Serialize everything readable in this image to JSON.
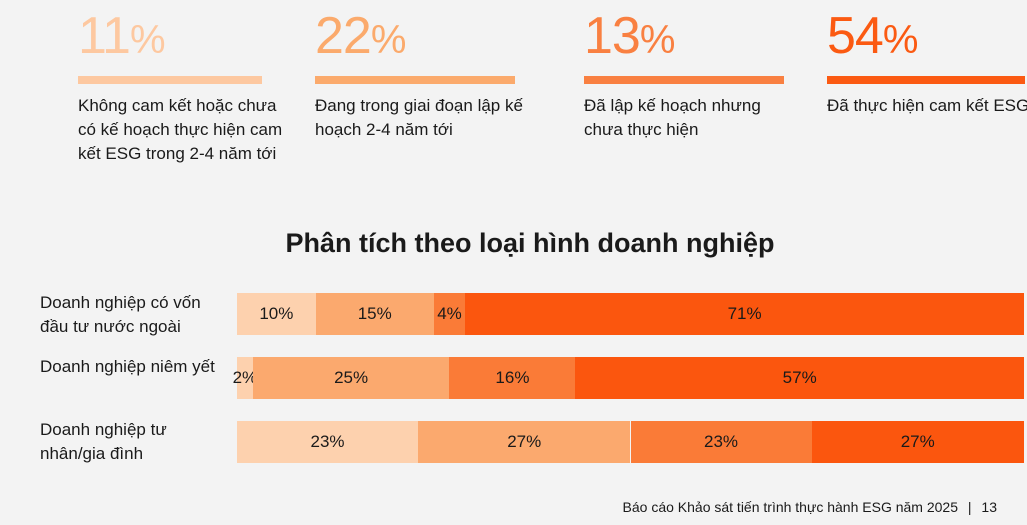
{
  "stats": [
    {
      "value": "11",
      "symbol": "%",
      "color": "#fdc8a0",
      "text": "Không cam kết hoặc chưa có kế hoạch thực hiện cam kết ESG trong 2-4 năm tới"
    },
    {
      "value": "22",
      "symbol": "%",
      "color": "#fbaa6c",
      "text": "Đang trong giai đoạn lập kế hoạch 2-4 năm tới"
    },
    {
      "value": "13",
      "symbol": "%",
      "color": "#f98041",
      "text": "Đã lập kế hoạch nhưng chưa thực hiện"
    },
    {
      "value": "54",
      "symbol": "%",
      "color": "#fb5a12",
      "text": "Đã thực hiện cam kết ESG"
    }
  ],
  "chart_data": {
    "type": "bar",
    "orientation": "horizontal",
    "stacked": true,
    "title": "Phân tích theo loại hình doanh nghiệp",
    "categories": [
      "Doanh nghiệp có vốn đầu tư nước ngoài",
      "Doanh nghiệp niêm yết",
      "Doanh nghiệp tư nhân/gia đình"
    ],
    "series": [
      {
        "values": [
          10,
          2,
          23
        ],
        "labels": [
          "10%",
          "2%",
          "23%"
        ],
        "color": "#fdd1ae"
      },
      {
        "values": [
          15,
          25,
          27
        ],
        "labels": [
          "15%",
          "25%",
          "27%"
        ],
        "color": "#fba96e"
      },
      {
        "values": [
          4,
          16,
          23
        ],
        "labels": [
          "4%",
          "16%",
          "23%"
        ],
        "color": "#fa7b37"
      },
      {
        "values": [
          71,
          57,
          27
        ],
        "labels": [
          "71%",
          "57%",
          "27%"
        ],
        "color": "#fb560e"
      }
    ]
  },
  "footer": {
    "text": "Báo cáo Khảo sát tiến trình thực hành ESG năm 2025",
    "separator": "|",
    "page": "13"
  }
}
